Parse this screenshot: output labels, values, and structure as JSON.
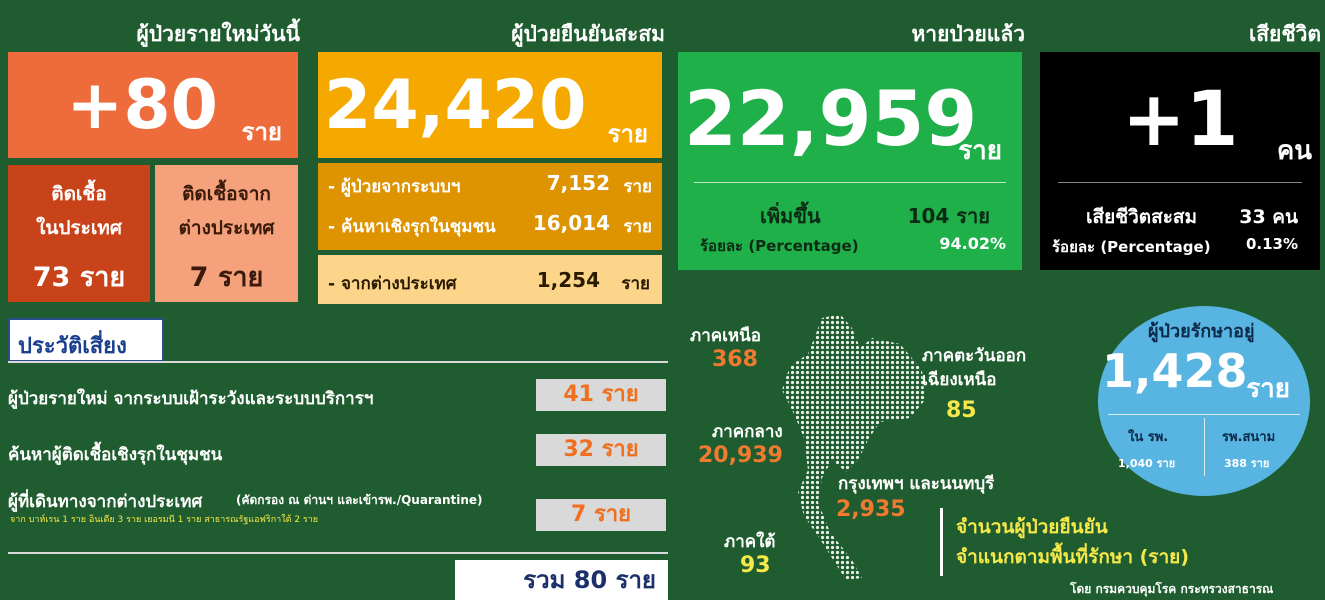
{
  "new_cases": {
    "title": "ผู้ป่วยรายใหม่วันนี้",
    "value": "+80",
    "unit": "ราย",
    "domestic": {
      "label_1": "ติดเชื้อ",
      "label_2": "ในประเทศ",
      "value": "73 ราย"
    },
    "imported": {
      "label_1": "ติดเชื้อจาก",
      "label_2": "ต่างประเทศ",
      "value": "7 ราย"
    }
  },
  "confirmed": {
    "title": "ผู้ป่วยยืนยันสะสม",
    "value": "24,420",
    "unit": "ราย",
    "rows": [
      {
        "label": "- ผู้ป่วยจากระบบฯ",
        "value": "7,152",
        "unit": "ราย"
      },
      {
        "label": "- ค้นหาเชิงรุกในชุมชน",
        "value": "16,014",
        "unit": "ราย"
      },
      {
        "label": "- จากต่างประเทศ",
        "value": "1,254",
        "unit": "ราย"
      }
    ]
  },
  "recovered": {
    "title": "หายป่วยแล้ว",
    "value": "22,959",
    "unit": "ราย",
    "increase_label": "เพิ่มขึ้น",
    "increase_value": "104 ราย",
    "percentage_label": "ร้อยละ (Percentage)",
    "percentage_value": "94.02%"
  },
  "deaths": {
    "title": "เสียชีวิต",
    "value": "+1",
    "unit": "คน",
    "cumulative_label": "เสียชีวิตสะสม",
    "cumulative_value": "33 คน",
    "percentage_label": "ร้อยละ (Percentage)",
    "percentage_value": "0.13%"
  },
  "risk": {
    "title": "ประวัติเสี่ยง",
    "rows": [
      {
        "label": "ผู้ป่วยรายใหม่ จากระบบเฝ้าระวังและระบบบริการฯ",
        "value": "41 ราย"
      },
      {
        "label": "ค้นหาผู้ติดเชื้อเชิงรุกในชุมชน",
        "value": "32 ราย"
      },
      {
        "label": "ผู้ที่เดินทางจากต่างประเทศ",
        "note": "(คัดกรอง ณ ด่านฯ และเข้ารพ./Quarantine)",
        "detail": "จาก บาห์เรน 1 ราย อินเดีย 3 ราย เยอรมนี 1 ราย สาธารณรัฐแอฟริกาใต้ 2 ราย",
        "value": "7 ราย"
      }
    ],
    "total": "รวม 80 ราย"
  },
  "regions": [
    {
      "name": "ภาคเหนือ",
      "value": "368"
    },
    {
      "name": "ภาคตะวันออก",
      "name_2": "เฉียงเหนือ",
      "value": "85"
    },
    {
      "name": "ภาคกลาง",
      "value": "20,939"
    },
    {
      "name": "กรุงเทพฯ และนนทบุรี",
      "value": "2,935"
    },
    {
      "name": "ภาคใต้",
      "value": "93"
    }
  ],
  "map_caption": {
    "line_1": "จำนวนผู้ป่วยยืนยัน",
    "line_2": "จำแนกตามพื้นที่รักษา (ราย)"
  },
  "treating": {
    "title": "ผู้ป่วยรักษาอยู่",
    "value": "1,428",
    "unit": "ราย",
    "hospital_label": "ใน รพ.",
    "hospital_value": "1,040 ราย",
    "field_label": "รพ.สนาม",
    "field_value": "388 ราย"
  },
  "source": "โดย กรมควบคุมโรค กระทรวงสาธารณ"
}
